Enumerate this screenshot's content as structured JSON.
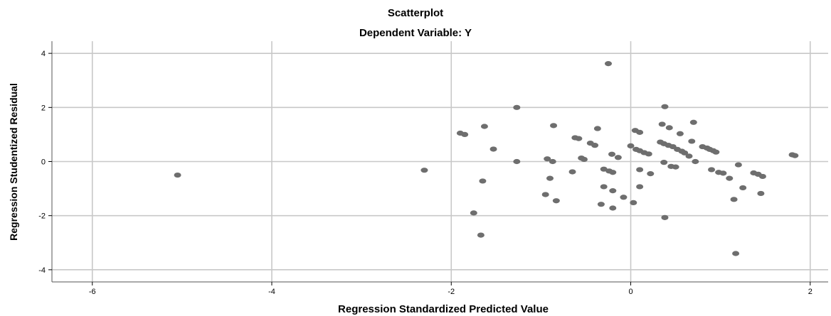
{
  "chart_data": {
    "type": "scatter",
    "title": "Scatterplot",
    "subtitle": "Dependent Variable: Y",
    "xlabel": "Regression Standardized Predicted Value",
    "ylabel": "Regression Studentized Residual",
    "xlim": [
      -6.45,
      2.2
    ],
    "ylim": [
      -4.45,
      4.45
    ],
    "xticks": [
      -6,
      -4,
      -2,
      0,
      2
    ],
    "yticks": [
      -4,
      -2,
      0,
      2,
      4
    ],
    "grid": {
      "x": true,
      "y": true
    },
    "colors": {
      "point": "#6e6e6e",
      "grid": "#c8c8c8",
      "axis": "#555555"
    },
    "points": [
      {
        "x": -5.05,
        "y": -0.5
      },
      {
        "x": -2.3,
        "y": -0.32
      },
      {
        "x": -1.9,
        "y": 1.05
      },
      {
        "x": -1.85,
        "y": 1.0
      },
      {
        "x": -1.75,
        "y": -1.9
      },
      {
        "x": -1.67,
        "y": -2.72
      },
      {
        "x": -1.65,
        "y": -0.72
      },
      {
        "x": -1.63,
        "y": 1.3
      },
      {
        "x": -1.53,
        "y": 0.46
      },
      {
        "x": -1.27,
        "y": 2.0
      },
      {
        "x": -1.27,
        "y": 0.0
      },
      {
        "x": -0.95,
        "y": -1.22
      },
      {
        "x": -0.93,
        "y": 0.1
      },
      {
        "x": -0.9,
        "y": -0.62
      },
      {
        "x": -0.87,
        "y": 0.0
      },
      {
        "x": -0.86,
        "y": 1.33
      },
      {
        "x": -0.83,
        "y": -1.45
      },
      {
        "x": -0.65,
        "y": -0.38
      },
      {
        "x": -0.62,
        "y": 0.88
      },
      {
        "x": -0.58,
        "y": 0.85
      },
      {
        "x": -0.55,
        "y": 0.13
      },
      {
        "x": -0.52,
        "y": 0.08
      },
      {
        "x": -0.45,
        "y": 0.68
      },
      {
        "x": -0.4,
        "y": 0.6
      },
      {
        "x": -0.37,
        "y": 1.22
      },
      {
        "x": -0.33,
        "y": -1.58
      },
      {
        "x": -0.3,
        "y": -0.28
      },
      {
        "x": -0.3,
        "y": -0.93
      },
      {
        "x": -0.25,
        "y": 3.62
      },
      {
        "x": -0.24,
        "y": -0.35
      },
      {
        "x": -0.21,
        "y": 0.27
      },
      {
        "x": -0.2,
        "y": -0.4
      },
      {
        "x": -0.2,
        "y": -1.08
      },
      {
        "x": -0.2,
        "y": -1.72
      },
      {
        "x": -0.14,
        "y": 0.15
      },
      {
        "x": -0.08,
        "y": -1.32
      },
      {
        "x": 0.0,
        "y": 0.58
      },
      {
        "x": 0.03,
        "y": -1.52
      },
      {
        "x": 0.05,
        "y": 1.15
      },
      {
        "x": 0.06,
        "y": 0.45
      },
      {
        "x": 0.1,
        "y": 1.08
      },
      {
        "x": 0.1,
        "y": 0.4
      },
      {
        "x": 0.1,
        "y": -0.3
      },
      {
        "x": 0.1,
        "y": -0.93
      },
      {
        "x": 0.15,
        "y": 0.33
      },
      {
        "x": 0.2,
        "y": 0.28
      },
      {
        "x": 0.22,
        "y": -0.45
      },
      {
        "x": 0.33,
        "y": 0.72
      },
      {
        "x": 0.35,
        "y": 1.38
      },
      {
        "x": 0.37,
        "y": 0.66
      },
      {
        "x": 0.37,
        "y": -0.03
      },
      {
        "x": 0.38,
        "y": 2.03
      },
      {
        "x": 0.38,
        "y": -2.07
      },
      {
        "x": 0.42,
        "y": 0.6
      },
      {
        "x": 0.43,
        "y": 1.25
      },
      {
        "x": 0.45,
        "y": -0.18
      },
      {
        "x": 0.47,
        "y": 0.55
      },
      {
        "x": 0.5,
        "y": -0.2
      },
      {
        "x": 0.52,
        "y": 0.45
      },
      {
        "x": 0.55,
        "y": 1.03
      },
      {
        "x": 0.57,
        "y": 0.38
      },
      {
        "x": 0.6,
        "y": 0.32
      },
      {
        "x": 0.65,
        "y": 0.2
      },
      {
        "x": 0.68,
        "y": 0.75
      },
      {
        "x": 0.7,
        "y": 1.45
      },
      {
        "x": 0.72,
        "y": 0.0
      },
      {
        "x": 0.8,
        "y": 0.55
      },
      {
        "x": 0.85,
        "y": 0.5
      },
      {
        "x": 0.88,
        "y": 0.45
      },
      {
        "x": 0.9,
        "y": -0.3
      },
      {
        "x": 0.92,
        "y": 0.4
      },
      {
        "x": 0.95,
        "y": 0.35
      },
      {
        "x": 0.98,
        "y": -0.4
      },
      {
        "x": 1.03,
        "y": -0.43
      },
      {
        "x": 1.1,
        "y": -0.62
      },
      {
        "x": 1.15,
        "y": -1.4
      },
      {
        "x": 1.17,
        "y": -3.4
      },
      {
        "x": 1.2,
        "y": -0.12
      },
      {
        "x": 1.25,
        "y": -0.97
      },
      {
        "x": 1.37,
        "y": -0.42
      },
      {
        "x": 1.42,
        "y": -0.47
      },
      {
        "x": 1.45,
        "y": -1.18
      },
      {
        "x": 1.47,
        "y": -0.55
      },
      {
        "x": 1.8,
        "y": 0.25
      },
      {
        "x": 1.83,
        "y": 0.22
      }
    ]
  }
}
